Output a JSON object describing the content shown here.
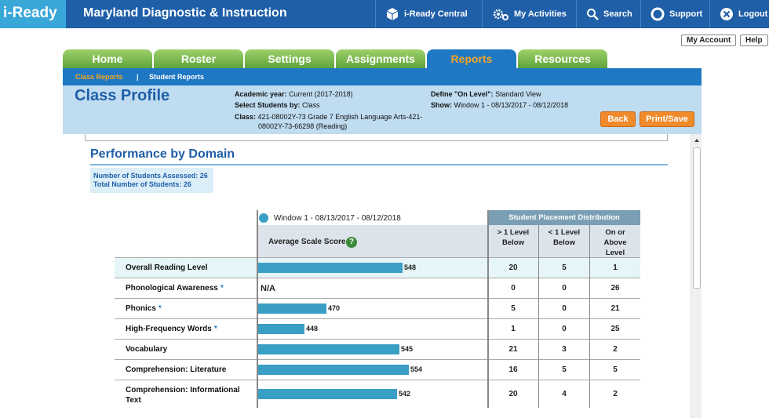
{
  "app": {
    "logo": "i-Ready",
    "title": "Maryland Diagnostic & Instruction"
  },
  "topnav": [
    {
      "label": "i-Ready Central",
      "icon": "cube-icon"
    },
    {
      "label": "My Activities",
      "icon": "gears-icon"
    },
    {
      "label": "Search",
      "icon": "search-icon"
    },
    {
      "label": "Support",
      "icon": "lifebuoy-icon"
    },
    {
      "label": "Logout",
      "icon": "close-circle-icon"
    }
  ],
  "account": {
    "my_account": "My Account",
    "help": "Help"
  },
  "tabs": [
    "Home",
    "Roster",
    "Settings",
    "Assignments",
    "Reports",
    "Resources"
  ],
  "active_tab": "Reports",
  "subnav": [
    "Class Reports",
    "Student Reports"
  ],
  "header": {
    "title": "Class Profile",
    "academic_year_label": "Academic year:",
    "academic_year": "Current (2017-2018)",
    "select_by_label": "Select Students by:",
    "select_by": "Class",
    "class_label": "Class:",
    "class_line1": "421-08002Y-73 Grade 7 English Language Arts-421-",
    "class_line2": "08002Y-73-66298 (Reading)",
    "on_level_label": "Define \"On Level\":",
    "on_level": "Standard View",
    "show_label": "Show:",
    "show": "Window 1 - 08/13/2017 - 08/12/2018",
    "back": "Back",
    "print": "Print/Save"
  },
  "section": {
    "title": "Performance by Domain",
    "assessed": "Number of Students Assessed: 26",
    "total": "Total Number of Students: 26"
  },
  "table": {
    "window_label": "Window 1 - 08/13/2017 - 08/12/2018",
    "avg_label": "Average Scale Score",
    "dist_label": "Student Placement Distribution",
    "col1": [
      "> 1 Level",
      "Below"
    ],
    "col2": [
      "< 1 Level",
      "Below"
    ],
    "col3": [
      "On or",
      "Above",
      "Level"
    ],
    "colors": {
      "bar": "#3a9fc4",
      "header": "#7a9fb5"
    }
  },
  "chart_data": {
    "type": "bar",
    "categories": [
      "Overall Reading Level",
      "Phonological Awareness",
      "Phonics",
      "High-Frequency Words",
      "Vocabulary",
      "Comprehension: Literature",
      "Comprehension: Informational Text"
    ],
    "values": [
      548,
      null,
      470,
      448,
      545,
      554,
      542
    ],
    "value_labels": [
      "548",
      "N/A",
      "470",
      "448",
      "545",
      "554",
      "542"
    ],
    "starred": [
      false,
      true,
      true,
      true,
      false,
      false,
      false
    ],
    "distribution": [
      [
        20,
        5,
        1
      ],
      [
        0,
        0,
        26
      ],
      [
        5,
        0,
        21
      ],
      [
        1,
        0,
        25
      ],
      [
        21,
        3,
        2
      ],
      [
        16,
        5,
        5
      ],
      [
        20,
        4,
        2
      ]
    ]
  }
}
